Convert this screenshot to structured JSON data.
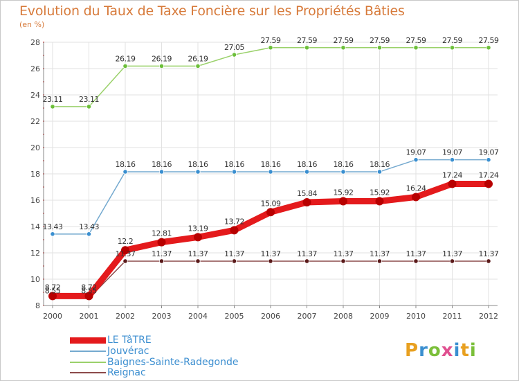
{
  "title": "Evolution du Taux de Taxe Foncière sur les Propriétés Bâties",
  "unit_label": "(en %)",
  "logo": {
    "text": "Proxiti",
    "letters": [
      {
        "ch": "P",
        "color": "#e8a020"
      },
      {
        "ch": "r",
        "color": "#3a8fd0"
      },
      {
        "ch": "o",
        "color": "#7bbf3a"
      },
      {
        "ch": "x",
        "color": "#e05090"
      },
      {
        "ch": "i",
        "color": "#3a8fd0"
      },
      {
        "ch": "t",
        "color": "#e8a020"
      },
      {
        "ch": "i",
        "color": "#7bbf3a"
      }
    ]
  },
  "chart_data": {
    "type": "line",
    "title": "Evolution du Taux de Taxe Foncière sur les Propriétés Bâties",
    "ylabel": "(en %)",
    "xlabel": "",
    "ylim": [
      8,
      28
    ],
    "y_ticks": [
      "8",
      "10",
      "12",
      "14",
      "16",
      "18",
      "20",
      "22",
      "24",
      "26",
      "28"
    ],
    "x": [
      "2000",
      "2001",
      "2002",
      "2003",
      "2004",
      "2005",
      "2006",
      "2007",
      "2008",
      "2009",
      "2010",
      "2011",
      "2012"
    ],
    "grid": true,
    "legend_position": "bottom-left",
    "series": [
      {
        "name": "LE TâTRE",
        "color": "#e41a1c",
        "point_color": "#b80000",
        "thick": true,
        "values": [
          8.72,
          8.72,
          12.2,
          12.81,
          13.19,
          13.72,
          15.09,
          15.84,
          15.92,
          15.92,
          16.24,
          17.24,
          17.24
        ],
        "labels": [
          "8.72",
          "8.72",
          "12.2",
          "12.81",
          "13.19",
          "13.72",
          "15.09",
          "15.84",
          "15.92",
          "15.92",
          "16.24",
          "17.24",
          "17.24"
        ]
      },
      {
        "name": "Jouvérac",
        "color": "#74a9cf",
        "point_color": "#3a8fd0",
        "thick": false,
        "values": [
          13.43,
          13.43,
          18.16,
          18.16,
          18.16,
          18.16,
          18.16,
          18.16,
          18.16,
          18.16,
          19.07,
          19.07,
          19.07
        ],
        "labels": [
          "13.43",
          "13.43",
          "18.16",
          "18.16",
          "18.16",
          "18.16",
          "18.16",
          "18.16",
          "18.16",
          "18.16",
          "19.07",
          "19.07",
          "19.07"
        ]
      },
      {
        "name": "Baignes-Sainte-Radegonde",
        "color": "#9ad16a",
        "point_color": "#6cbf3a",
        "thick": false,
        "values": [
          23.11,
          23.11,
          26.19,
          26.19,
          26.19,
          27.05,
          27.59,
          27.59,
          27.59,
          27.59,
          27.59,
          27.59,
          27.59
        ],
        "labels": [
          "23.11",
          "23.11",
          "26.19",
          "26.19",
          "26.19",
          "27.05",
          "27.59",
          "27.59",
          "27.59",
          "27.59",
          "27.59",
          "27.59",
          "27.59"
        ]
      },
      {
        "name": "Reignac",
        "color": "#8c4a4a",
        "point_color": "#5a1a1a",
        "thick": false,
        "values": [
          8.55,
          8.55,
          11.37,
          11.37,
          11.37,
          11.37,
          11.37,
          11.37,
          11.37,
          11.37,
          11.37,
          11.37,
          11.37
        ],
        "labels": [
          "8.55",
          "8.55",
          "11.37",
          "11.37",
          "11.37",
          "11.37",
          "11.37",
          "11.37",
          "11.37",
          "11.37",
          "11.37",
          "11.37",
          "11.37"
        ]
      }
    ]
  }
}
